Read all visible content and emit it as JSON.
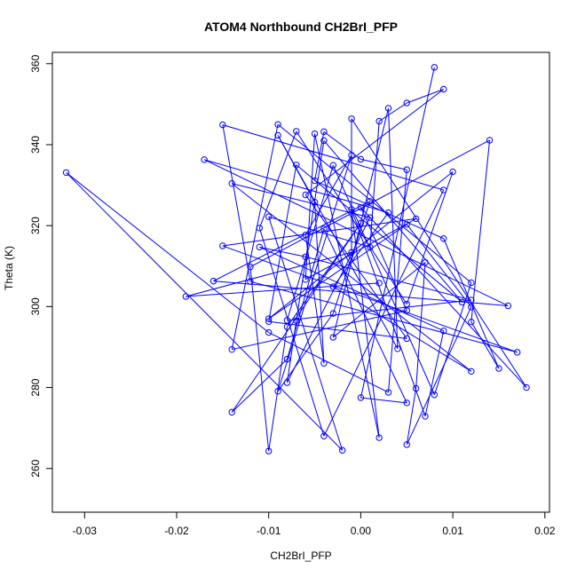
{
  "chart_data": {
    "type": "line",
    "title": "ATOM4 Northbound CH2BrI_PFP",
    "xlabel": "CH2BrI_PFP",
    "ylabel": "Theta (K)",
    "xlim": [
      -0.0335,
      0.0205
    ],
    "ylim": [
      249.2,
      362.8
    ],
    "xticks": [
      -0.03,
      -0.02,
      -0.01,
      0.0,
      0.01,
      0.02
    ],
    "xtick_labels": [
      "-0.03",
      "-0.02",
      "-0.01",
      "0.00",
      "0.01",
      "0.02"
    ],
    "yticks": [
      260,
      280,
      300,
      320,
      340,
      360
    ],
    "ytick_labels": [
      "260",
      "280",
      "300",
      "320",
      "340",
      "360"
    ],
    "grid": false,
    "legend": "none",
    "color": "#0000ff",
    "points": [
      [
        0.008,
        359.1
      ],
      [
        0.009,
        353.7
      ],
      [
        0.005,
        350.3
      ],
      [
        0.003,
        349.0
      ],
      [
        0.002,
        345.8
      ],
      [
        -0.001,
        346.4
      ],
      [
        -0.015,
        344.9
      ],
      [
        -0.009,
        345.0
      ],
      [
        -0.004,
        343.2
      ],
      [
        -0.007,
        343.3
      ],
      [
        -0.005,
        342.7
      ],
      [
        -0.009,
        342.3
      ],
      [
        0.014,
        341.1
      ],
      [
        -0.004,
        341.0
      ],
      [
        -0.032,
        333.1
      ],
      [
        -0.017,
        336.3
      ],
      [
        -0.001,
        337.4
      ],
      [
        0.0,
        336.4
      ],
      [
        -0.007,
        335.0
      ],
      [
        -0.003,
        334.9
      ],
      [
        0.005,
        333.8
      ],
      [
        0.01,
        333.3
      ],
      [
        -0.014,
        330.4
      ],
      [
        -0.005,
        331.1
      ],
      [
        0.009,
        328.8
      ],
      [
        -0.006,
        327.6
      ],
      [
        0.001,
        326.0
      ],
      [
        -0.005,
        325.8
      ],
      [
        0.0,
        324.5
      ],
      [
        -0.001,
        324.0
      ],
      [
        0.003,
        323.2
      ],
      [
        -0.01,
        322.2
      ],
      [
        0.001,
        322.0
      ],
      [
        0.006,
        321.7
      ],
      [
        0.0,
        320.6
      ],
      [
        0.005,
        320.3
      ],
      [
        -0.011,
        319.4
      ],
      [
        -0.004,
        319.2
      ],
      [
        -0.006,
        317.7
      ],
      [
        0.009,
        316.8
      ],
      [
        -0.015,
        315.0
      ],
      [
        -0.011,
        314.7
      ],
      [
        0.001,
        314.7
      ],
      [
        -0.001,
        313.4
      ],
      [
        -0.006,
        312.3
      ],
      [
        0.007,
        310.9
      ],
      [
        -0.012,
        309.8
      ],
      [
        -0.016,
        306.3
      ],
      [
        -0.012,
        306.2
      ],
      [
        -0.006,
        306.7
      ],
      [
        0.012,
        305.9
      ],
      [
        0.002,
        305.8
      ],
      [
        -0.003,
        304.9
      ],
      [
        0.011,
        301.1
      ],
      [
        0.012,
        301.6
      ],
      [
        -0.019,
        302.5
      ],
      [
        0.016,
        300.2
      ],
      [
        0.005,
        300.6
      ],
      [
        0.012,
        299.9
      ],
      [
        -0.003,
        298.3
      ],
      [
        0.005,
        299.0
      ],
      [
        -0.01,
        297.0
      ],
      [
        -0.01,
        296.3
      ],
      [
        -0.008,
        296.6
      ],
      [
        -0.007,
        296.5
      ],
      [
        0.012,
        296.2
      ],
      [
        -0.008,
        295.0
      ],
      [
        -0.01,
        293.6
      ],
      [
        0.009,
        294.0
      ],
      [
        -0.003,
        292.4
      ],
      [
        0.005,
        292.1
      ],
      [
        0.004,
        289.6
      ],
      [
        -0.014,
        289.4
      ],
      [
        0.017,
        288.7
      ],
      [
        -0.008,
        287.0
      ],
      [
        -0.004,
        286.0
      ],
      [
        0.015,
        284.7
      ],
      [
        0.012,
        284.0
      ],
      [
        -0.008,
        281.2
      ],
      [
        0.018,
        280.0
      ],
      [
        0.006,
        279.8
      ],
      [
        -0.009,
        279.1
      ],
      [
        0.003,
        278.8
      ],
      [
        0.008,
        278.2
      ],
      [
        0.0,
        277.5
      ],
      [
        0.005,
        276.2
      ],
      [
        -0.014,
        273.9
      ],
      [
        0.007,
        272.9
      ],
      [
        -0.004,
        268.0
      ],
      [
        0.002,
        267.6
      ],
      [
        0.005,
        265.9
      ],
      [
        -0.002,
        264.5
      ],
      [
        -0.01,
        264.3
      ]
    ],
    "path": [
      0,
      84,
      85,
      37,
      74,
      86,
      34,
      66,
      92,
      46,
      12,
      65,
      76,
      39,
      23,
      8,
      17,
      20,
      82,
      67,
      14,
      91,
      31,
      42,
      4,
      2,
      1,
      25,
      70,
      62,
      18,
      53,
      13,
      64,
      78,
      32,
      22,
      77,
      52,
      30,
      15,
      56,
      47,
      26,
      59,
      81,
      16,
      38,
      75,
      27,
      11,
      71,
      3,
      69,
      45,
      80,
      90,
      58,
      35,
      61,
      21,
      57,
      9,
      36,
      88,
      24,
      6,
      48,
      73,
      40,
      33,
      49,
      10,
      89,
      29,
      87,
      68,
      41,
      44,
      54,
      63,
      19,
      83,
      50,
      7,
      72,
      60,
      28,
      79,
      5,
      43,
      55,
      51
    ]
  }
}
